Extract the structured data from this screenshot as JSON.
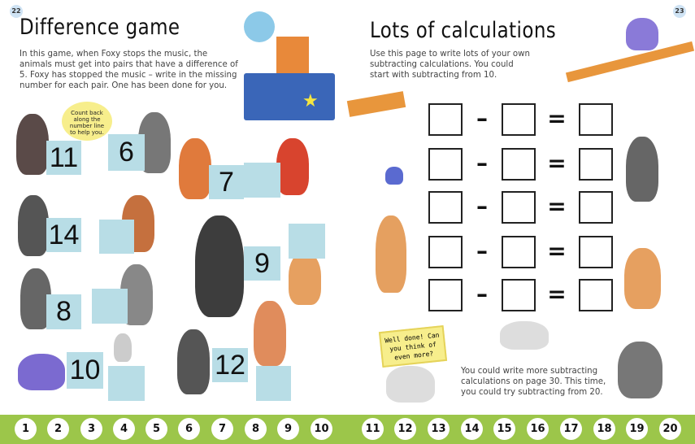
{
  "left_page": {
    "page_number": "22",
    "title": "Difference game",
    "intro": "In this game, when Foxy stops the music, the animals must get into pairs that have a difference of 5. Foxy has stopped the music – write in the missing number for each pair. One has been done for you.",
    "hint": "Count back along the number line to help you.",
    "cards": [
      "11",
      "6",
      "7",
      "14",
      "9",
      "8",
      "10",
      "12"
    ]
  },
  "right_page": {
    "page_number": "23",
    "title": "Lots of calculations",
    "intro": "Use this page to write lots of your own subtracting calculations. You could start with subtracting from 10.",
    "minus": "–",
    "equals": "=",
    "sign": "Well done! Can you think of even more?",
    "footer_text": "You could write more subtracting calculations on page 30. This time, you could try subtracting from 20."
  },
  "number_line": [
    "1",
    "2",
    "3",
    "4",
    "5",
    "6",
    "7",
    "8",
    "9",
    "10",
    "11",
    "12",
    "13",
    "14",
    "15",
    "16",
    "17",
    "18",
    "19",
    "20"
  ],
  "colors": {
    "card": "#b8dde6",
    "band": "#9cc64a"
  }
}
